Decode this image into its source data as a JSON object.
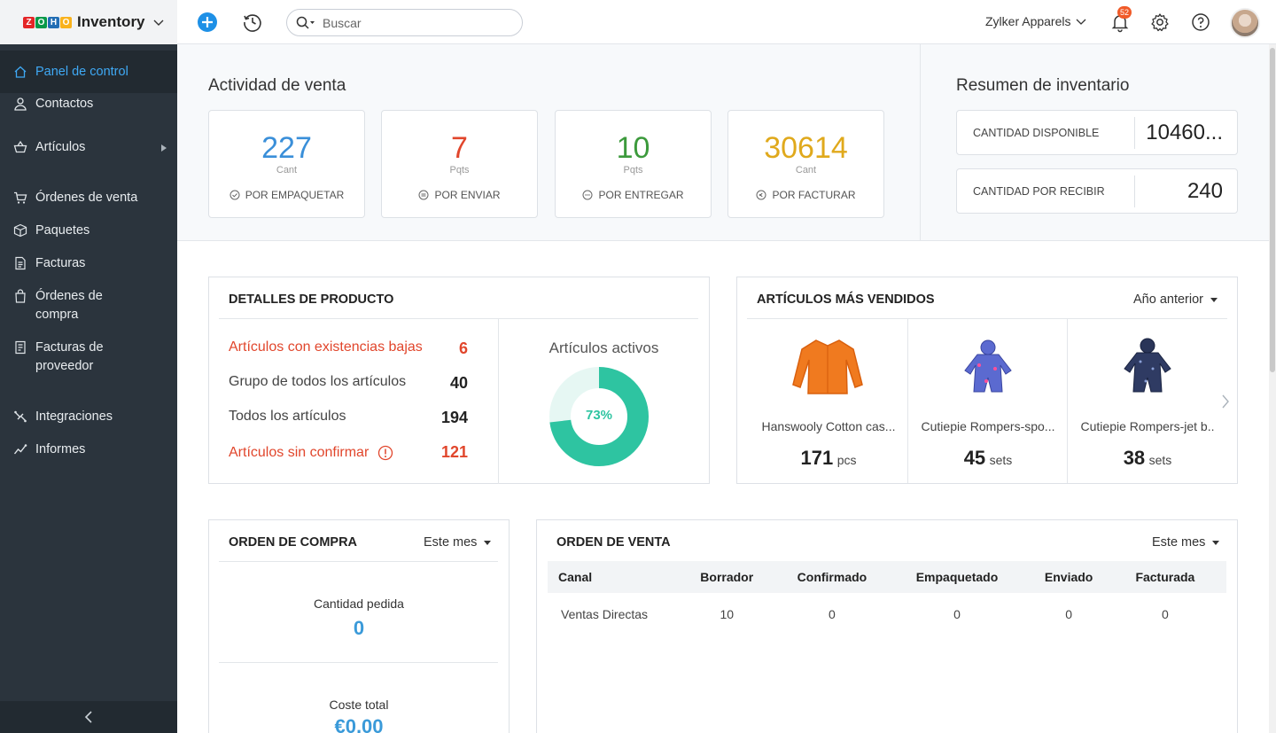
{
  "app": {
    "brand_logo_letters": [
      "Z",
      "O",
      "H",
      "O"
    ],
    "brand_name": "Inventory",
    "search_placeholder": "Buscar",
    "organization": "Zylker Apparels",
    "notification_count": "52"
  },
  "sidebar": {
    "items": [
      {
        "label": "Panel de control",
        "icon": "home-icon",
        "active": true
      },
      {
        "label": "Contactos",
        "icon": "user-icon"
      },
      {
        "label": "Artículos",
        "icon": "basket-icon",
        "has_submenu": true
      },
      {
        "label": "Órdenes de venta",
        "icon": "cart-icon"
      },
      {
        "label": "Paquetes",
        "icon": "package-icon"
      },
      {
        "label": "Facturas",
        "icon": "invoice-icon"
      },
      {
        "label": "Órdenes de compra",
        "icon": "bag-icon"
      },
      {
        "label": "Facturas de proveedor",
        "icon": "bill-icon"
      },
      {
        "label": "Integraciones",
        "icon": "integrations-icon"
      },
      {
        "label": "Informes",
        "icon": "reports-icon"
      }
    ],
    "collapse_icon": "chevron-left-icon"
  },
  "sales_activity": {
    "title": "Actividad de venta",
    "cards": [
      {
        "value": "227",
        "unit": "Cant",
        "label": "POR EMPAQUETAR",
        "color": "#3a8fd9"
      },
      {
        "value": "7",
        "unit": "Pqts",
        "label": "POR ENVIAR",
        "color": "#e1462c"
      },
      {
        "value": "10",
        "unit": "Pqts",
        "label": "POR ENTREGAR",
        "color": "#3c9a3c"
      },
      {
        "value": "30614",
        "unit": "Cant",
        "label": "POR FACTURAR",
        "color": "#e0a91c"
      }
    ]
  },
  "inventory_summary": {
    "title": "Resumen de inventario",
    "rows": [
      {
        "label": "CANTIDAD DISPONIBLE",
        "value": "10460..."
      },
      {
        "label": "CANTIDAD POR RECIBIR",
        "value": "240"
      }
    ]
  },
  "product_details": {
    "title": "DETALLES DE PRODUCTO",
    "rows": [
      {
        "label": "Artículos con existencias bajas",
        "value": "6",
        "alert": true
      },
      {
        "label": "Grupo de todos los artículos",
        "value": "40"
      },
      {
        "label": "Todos los artículos",
        "value": "194"
      },
      {
        "label": "Artículos sin confirmar",
        "value": "121",
        "alert": true
      }
    ],
    "active_items": {
      "title": "Artículos activos",
      "percent_label": "73%",
      "fraction": 0.73,
      "color": "#2ec4a1"
    }
  },
  "top_selling": {
    "title": "ARTÍCULOS MÁS VENDIDOS",
    "period": "Año anterior",
    "items": [
      {
        "name": "Hanswooly Cotton cas...",
        "qty": "171",
        "unit": "pcs"
      },
      {
        "name": "Cutiepie Rompers-spo...",
        "qty": "45",
        "unit": "sets"
      },
      {
        "name": "Cutiepie Rompers-jet b..",
        "qty": "38",
        "unit": "sets"
      }
    ]
  },
  "purchase_order": {
    "title": "ORDEN DE COMPRA",
    "period": "Este mes",
    "qty_label": "Cantidad pedida",
    "qty_value": "0",
    "cost_label": "Coste total",
    "cost_value": "€0,00"
  },
  "sales_order": {
    "title": "ORDEN DE VENTA",
    "period": "Este mes",
    "columns": [
      "Canal",
      "Borrador",
      "Confirmado",
      "Empaquetado",
      "Enviado",
      "Facturada"
    ],
    "rows": [
      [
        "Ventas Directas",
        "10",
        "0",
        "0",
        "0",
        "0"
      ]
    ]
  }
}
